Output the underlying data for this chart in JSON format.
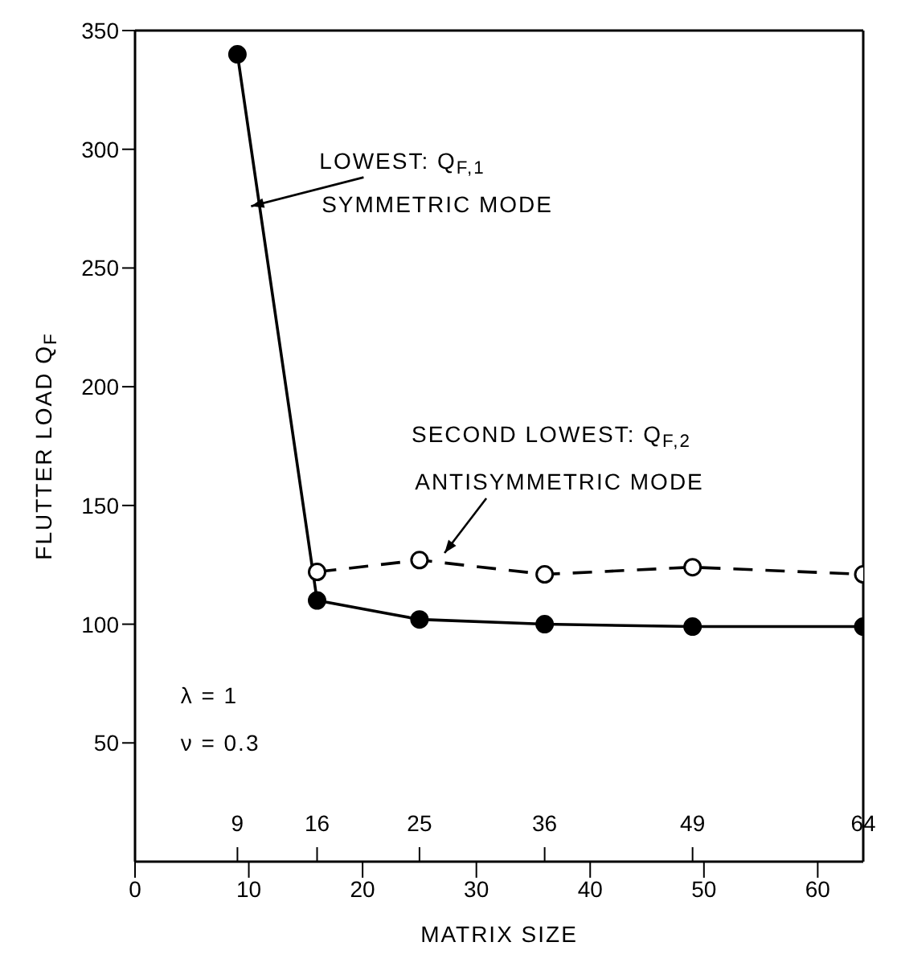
{
  "chart_data": {
    "type": "line",
    "xlabel": "MATRIX SIZE",
    "ylabel": "FLUTTER LOAD Q$_{F}$",
    "x": [
      9,
      16,
      25,
      36,
      49,
      64
    ],
    "series": [
      {
        "color": "#000000",
        "line_style": "solid",
        "values": [
          340,
          110,
          102,
          100,
          99,
          99
        ]
      },
      {
        "color": "#000000",
        "line_style": "dashed",
        "x": [
          16,
          25,
          36,
          49,
          64
        ],
        "values": [
          122,
          127,
          121,
          124,
          121
        ]
      }
    ],
    "xlim": [
      0,
      64
    ],
    "xticks": [
      0,
      10,
      20,
      30,
      40,
      50,
      60
    ],
    "x2lim": [
      0,
      64
    ],
    "x2ticks": [
      9,
      16,
      25,
      36,
      49,
      64
    ],
    "ylim": [
      0,
      350
    ],
    "yticks": [
      50,
      100,
      150,
      200,
      250,
      300,
      350
    ],
    "marker": "circle",
    "annotations": [
      "LOWEST: Q$_{F,1}$",
      "SYMMETRIC MODE",
      "SECOND LOWEST: Q$_{F,2}$",
      "ANTISYMMETRIC MODE",
      "λ = 1",
      "ν = 0.3"
    ]
  }
}
